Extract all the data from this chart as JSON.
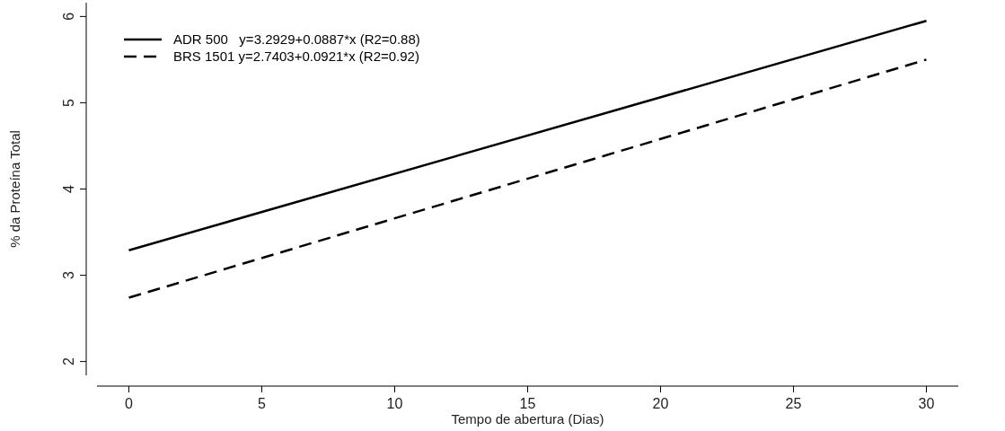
{
  "chart_data": {
    "type": "line",
    "xlabel": "Tempo de abertura (Dias)",
    "ylabel": "% da Proteína Total",
    "x": [
      0,
      30
    ],
    "series": [
      {
        "name": "ADR 500   y=3.2929+0.0887*x (R2=0.88)",
        "color": "#000000",
        "values": [
          3.29,
          5.95
        ],
        "line_style": "solid"
      },
      {
        "name": "BRS 1501 y=2.7403+0.0921*x (R2=0.92)",
        "color": "#000000",
        "values": [
          2.74,
          5.5
        ],
        "line_style": "dashed"
      }
    ],
    "xlim": [
      -1.2,
      31.2
    ],
    "xticks": [
      0,
      5,
      10,
      15,
      20,
      25,
      30
    ],
    "ylim": [
      1.84,
      6.16
    ],
    "yticks": [
      2,
      3,
      4,
      5,
      6
    ],
    "grid": false,
    "legend": "top left"
  }
}
